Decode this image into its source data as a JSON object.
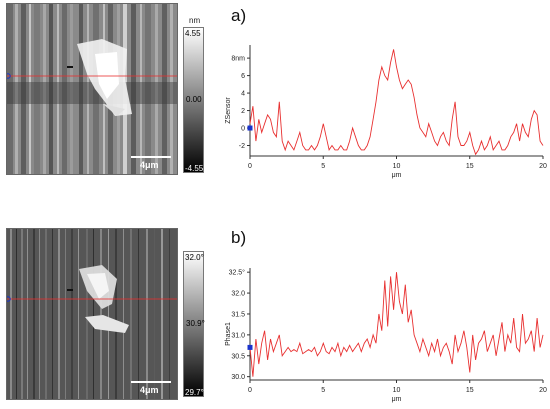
{
  "panel_a": {
    "label": "a)",
    "colorbar": {
      "unit": "nm",
      "max": "4.55",
      "mid": "0.00",
      "min": "-4.55"
    },
    "scale_bar": "4μm"
  },
  "panel_b": {
    "label": "b)",
    "colorbar": {
      "max": "32.0°",
      "mid": "30.9°",
      "min": "29.7°"
    },
    "scale_bar": "4μm"
  },
  "colors": {
    "profile_line": "#e83030",
    "cursor_marker": "#1a33cc",
    "axis": "#333333"
  },
  "chart_data": [
    {
      "type": "line",
      "xlabel": "μm",
      "ylabel": "ZSensor",
      "xlim": [
        0,
        20
      ],
      "ylim": [
        -3.2,
        9.5
      ],
      "xticks": [
        {
          "v": 0,
          "t": "0"
        },
        {
          "v": 5,
          "t": "5"
        },
        {
          "v": 10,
          "t": "10"
        },
        {
          "v": 15,
          "t": "15"
        },
        {
          "v": 20,
          "t": "20"
        }
      ],
      "yticks": [
        {
          "v": -2,
          "t": "-2"
        },
        {
          "v": 0,
          "t": "0"
        },
        {
          "v": 2,
          "t": "2"
        },
        {
          "v": 4,
          "t": "4"
        },
        {
          "v": 6,
          "t": "6"
        },
        {
          "v": 8,
          "t": "8nm"
        }
      ],
      "cursor": {
        "x": 0,
        "y": 0
      },
      "x": [
        0,
        0.2,
        0.4,
        0.6,
        0.8,
        1.0,
        1.2,
        1.4,
        1.6,
        1.8,
        2.0,
        2.2,
        2.4,
        2.6,
        2.8,
        3.0,
        3.2,
        3.4,
        3.6,
        3.8,
        4.0,
        4.2,
        4.4,
        4.6,
        4.8,
        5.0,
        5.2,
        5.4,
        5.6,
        5.8,
        6.0,
        6.2,
        6.4,
        6.6,
        6.8,
        7.0,
        7.2,
        7.4,
        7.6,
        7.8,
        8.0,
        8.2,
        8.4,
        8.6,
        8.8,
        9.0,
        9.2,
        9.4,
        9.6,
        9.8,
        10.0,
        10.2,
        10.4,
        10.6,
        10.8,
        11.0,
        11.2,
        11.4,
        11.6,
        11.8,
        12.0,
        12.2,
        12.4,
        12.6,
        12.8,
        13.0,
        13.2,
        13.4,
        13.6,
        13.8,
        14.0,
        14.2,
        14.4,
        14.6,
        14.8,
        15.0,
        15.2,
        15.4,
        15.6,
        15.8,
        16.0,
        16.2,
        16.4,
        16.6,
        16.8,
        17.0,
        17.2,
        17.4,
        17.6,
        17.8,
        18.0,
        18.2,
        18.4,
        18.6,
        18.8,
        19.0,
        19.2,
        19.4,
        19.6,
        19.8,
        20.0
      ],
      "y": [
        0.5,
        2.5,
        -1.5,
        1.0,
        -0.5,
        0.5,
        1.5,
        1.0,
        -0.5,
        -1.0,
        3.0,
        -1.5,
        -2.5,
        -1.5,
        -2.0,
        -2.5,
        -1.5,
        -0.5,
        -2.0,
        -2.5,
        -2.5,
        -2.0,
        -2.5,
        -2.0,
        -1.0,
        0.5,
        -1.0,
        -2.5,
        -2.0,
        -2.5,
        -2.5,
        -2.0,
        -2.5,
        -2.5,
        -1.5,
        0.0,
        -1.0,
        -2.0,
        -2.5,
        -2.5,
        -2.0,
        -1.0,
        1.0,
        3.0,
        5.5,
        7.0,
        6.0,
        5.5,
        7.5,
        9.0,
        7.0,
        5.5,
        4.5,
        5.0,
        5.5,
        5.0,
        3.5,
        1.5,
        0.0,
        -0.5,
        -1.0,
        0.5,
        -0.5,
        -1.5,
        -2.0,
        -1.0,
        -0.5,
        -1.5,
        -2.0,
        1.0,
        3.0,
        -1.0,
        -2.0,
        -2.0,
        -1.5,
        -0.5,
        -2.0,
        -3.0,
        -2.5,
        -1.5,
        -2.5,
        -2.0,
        -1.0,
        -2.5,
        -2.0,
        -1.5,
        -2.5,
        -2.5,
        -2.0,
        -1.0,
        -0.5,
        0.5,
        -1.5,
        0.5,
        -0.5,
        -1.0,
        1.0,
        2.0,
        1.5,
        -1.5,
        -2.0
      ]
    },
    {
      "type": "line",
      "xlabel": "μm",
      "ylabel": "Phase1",
      "xlim": [
        0,
        20
      ],
      "ylim": [
        29.92,
        32.6
      ],
      "xticks": [
        {
          "v": 0,
          "t": "0"
        },
        {
          "v": 5,
          "t": "5"
        },
        {
          "v": 10,
          "t": "10"
        },
        {
          "v": 15,
          "t": "15"
        },
        {
          "v": 20,
          "t": "20"
        }
      ],
      "yticks": [
        {
          "v": 30.0,
          "t": "30.0"
        },
        {
          "v": 30.5,
          "t": "30.5"
        },
        {
          "v": 31.0,
          "t": "31.0"
        },
        {
          "v": 31.5,
          "t": "31.5"
        },
        {
          "v": 32.0,
          "t": "32.0"
        },
        {
          "v": 32.5,
          "t": "32.5°"
        }
      ],
      "cursor": {
        "x": 0,
        "y": 30.7
      },
      "x": [
        0,
        0.2,
        0.4,
        0.6,
        0.8,
        1.0,
        1.2,
        1.4,
        1.6,
        1.8,
        2.0,
        2.2,
        2.4,
        2.6,
        2.8,
        3.0,
        3.2,
        3.4,
        3.6,
        3.8,
        4.0,
        4.2,
        4.4,
        4.6,
        4.8,
        5.0,
        5.2,
        5.4,
        5.6,
        5.8,
        6.0,
        6.2,
        6.4,
        6.6,
        6.8,
        7.0,
        7.2,
        7.4,
        7.6,
        7.8,
        8.0,
        8.2,
        8.4,
        8.6,
        8.8,
        9.0,
        9.2,
        9.4,
        9.6,
        9.8,
        10.0,
        10.2,
        10.4,
        10.6,
        10.8,
        11.0,
        11.2,
        11.4,
        11.6,
        11.8,
        12.0,
        12.2,
        12.4,
        12.6,
        12.8,
        13.0,
        13.2,
        13.4,
        13.6,
        13.8,
        14.0,
        14.2,
        14.4,
        14.6,
        14.8,
        15.0,
        15.2,
        15.4,
        15.6,
        15.8,
        16.0,
        16.2,
        16.4,
        16.6,
        16.8,
        17.0,
        17.2,
        17.4,
        17.6,
        17.8,
        18.0,
        18.2,
        18.4,
        18.6,
        18.8,
        19.0,
        19.2,
        19.4,
        19.6,
        19.8,
        20.0
      ],
      "y": [
        30.7,
        30.0,
        30.9,
        30.3,
        30.8,
        31.1,
        30.4,
        30.9,
        30.6,
        30.8,
        31.0,
        30.5,
        30.6,
        30.7,
        30.6,
        30.65,
        30.6,
        30.8,
        30.55,
        30.6,
        30.65,
        30.6,
        30.7,
        30.5,
        30.6,
        30.8,
        30.6,
        30.55,
        30.7,
        30.6,
        30.8,
        30.5,
        30.7,
        30.6,
        30.75,
        30.6,
        30.7,
        30.8,
        30.6,
        30.8,
        30.9,
        30.7,
        31.0,
        30.8,
        31.5,
        31.1,
        32.3,
        31.2,
        32.4,
        31.6,
        32.5,
        31.8,
        31.5,
        32.2,
        31.3,
        31.6,
        31.0,
        30.8,
        30.6,
        30.9,
        30.7,
        30.5,
        30.8,
        30.6,
        30.9,
        30.5,
        30.7,
        30.8,
        30.6,
        30.3,
        31.0,
        30.6,
        30.8,
        31.1,
        30.7,
        30.1,
        31.0,
        30.4,
        30.8,
        30.9,
        31.1,
        30.6,
        30.8,
        31.0,
        30.5,
        30.9,
        31.3,
        30.6,
        31.0,
        30.8,
        31.4,
        30.7,
        30.6,
        31.5,
        30.8,
        30.9,
        31.1,
        30.6,
        31.4,
        30.7,
        31.0
      ]
    }
  ]
}
